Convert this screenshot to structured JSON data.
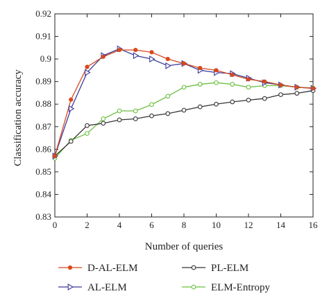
{
  "chart_data": {
    "type": "line",
    "xlabel": "Number of queries",
    "ylabel": "Classification accuracy",
    "xlim": [
      0,
      16
    ],
    "ylim": [
      0.83,
      0.92
    ],
    "xticks": [
      "0",
      "2",
      "4",
      "6",
      "8",
      "10",
      "12",
      "14",
      "16"
    ],
    "yticks": [
      "0.83",
      "0.84",
      "0.85",
      "0.86",
      "0.87",
      "0.88",
      "0.89",
      "0.9",
      "0.91",
      "0.92"
    ],
    "grid": false,
    "legend_position": "bottom",
    "x": [
      0,
      1,
      2,
      3,
      4,
      5,
      6,
      7,
      8,
      9,
      10,
      11,
      12,
      13,
      14,
      15,
      16
    ],
    "series": [
      {
        "name": "D-AL-ELM",
        "color": "#d9481c",
        "marker": "filled-circle",
        "values": [
          0.857,
          0.882,
          0.8965,
          0.901,
          0.904,
          0.904,
          0.903,
          0.9,
          0.898,
          0.896,
          0.895,
          0.893,
          0.891,
          0.89,
          0.8885,
          0.8875,
          0.887
        ]
      },
      {
        "name": "AL-ELM",
        "color": "#3b3b9a",
        "marker": "triangle-right",
        "values": [
          0.857,
          0.878,
          0.894,
          0.9015,
          0.9045,
          0.9015,
          0.9,
          0.897,
          0.898,
          0.895,
          0.894,
          0.8935,
          0.8915,
          0.8895,
          0.8885,
          0.8875,
          0.887
        ]
      },
      {
        "name": "PL-ELM",
        "color": "#333333",
        "marker": "open-circle",
        "values": [
          0.857,
          0.8635,
          0.8705,
          0.8715,
          0.873,
          0.8735,
          0.8748,
          0.8758,
          0.8773,
          0.8788,
          0.88,
          0.881,
          0.8818,
          0.8825,
          0.8842,
          0.8848,
          0.886
        ]
      },
      {
        "name": "ELM-Entropy",
        "color": "#6cbf3f",
        "marker": "open-circle",
        "values": [
          0.856,
          0.864,
          0.867,
          0.8735,
          0.877,
          0.877,
          0.8798,
          0.8835,
          0.8875,
          0.8888,
          0.8895,
          0.8888,
          0.8875,
          0.8882,
          0.8882,
          0.8875,
          0.8872
        ]
      }
    ]
  }
}
